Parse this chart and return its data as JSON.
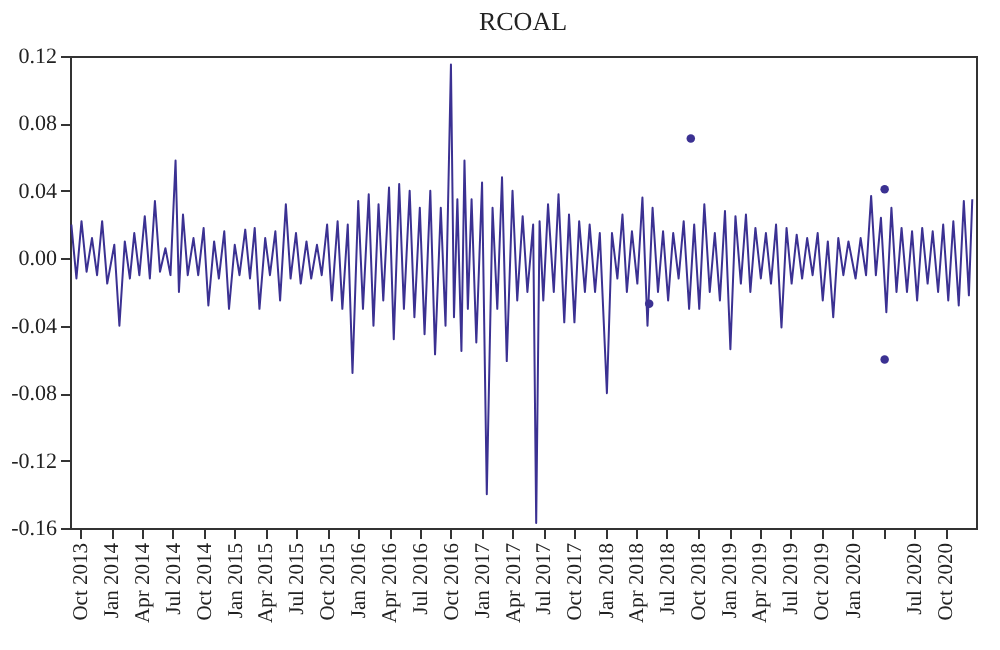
{
  "chart_data": {
    "type": "line",
    "title": "RCOAL",
    "grid": false,
    "line_style": "solid",
    "xlim": [
      "2013-09-01",
      "2020-12-31"
    ],
    "xticks": [
      {
        "value": "2013-10-01",
        "label": "Oct 2013"
      },
      {
        "value": "2014-01-01",
        "label": "Jan 2014"
      },
      {
        "value": "2014-04-01",
        "label": "Apr 2014"
      },
      {
        "value": "2014-07-01",
        "label": "Jul 2014"
      },
      {
        "value": "2014-10-01",
        "label": "Oct 2014"
      },
      {
        "value": "2015-01-01",
        "label": "Jan 2015"
      },
      {
        "value": "2015-04-01",
        "label": "Apr 2015"
      },
      {
        "value": "2015-07-01",
        "label": "Jul 2015"
      },
      {
        "value": "2015-10-01",
        "label": "Oct 2015"
      },
      {
        "value": "2016-01-01",
        "label": "Jan 2016"
      },
      {
        "value": "2016-04-01",
        "label": "Apr 2016"
      },
      {
        "value": "2016-07-01",
        "label": "Jul 2016"
      },
      {
        "value": "2016-10-01",
        "label": "Oct 2016"
      },
      {
        "value": "2017-01-01",
        "label": "Jan 2017"
      },
      {
        "value": "2017-04-01",
        "label": "Apr 2017"
      },
      {
        "value": "2017-07-01",
        "label": "Jul 2017"
      },
      {
        "value": "2017-10-01",
        "label": "Oct 2017"
      },
      {
        "value": "2018-01-01",
        "label": "Jan 2018"
      },
      {
        "value": "2018-04-01",
        "label": "Apr 2018"
      },
      {
        "value": "2018-07-01",
        "label": "Jul 2018"
      },
      {
        "value": "2018-10-01",
        "label": "Oct 2018"
      },
      {
        "value": "2019-01-01",
        "label": "Jan 2019"
      },
      {
        "value": "2019-04-01",
        "label": "Apr 2019"
      },
      {
        "value": "2019-07-01",
        "label": "Jul 2019"
      },
      {
        "value": "2019-10-01",
        "label": "Oct 2019"
      },
      {
        "value": "2020-01-01",
        "label": "Jan 2020"
      },
      {
        "value": "2020-04-01",
        "label": null
      },
      {
        "value": "2020-07-01",
        "label": "Jul 2020"
      },
      {
        "value": "2020-10-01",
        "label": "Oct 2020"
      }
    ],
    "ylim": [
      -0.16,
      0.12
    ],
    "yticks": [
      {
        "value": -0.16,
        "label": "-0.16"
      },
      {
        "value": -0.12,
        "label": "-0.12"
      },
      {
        "value": -0.08,
        "label": "-0.08"
      },
      {
        "value": -0.04,
        "label": "-0.04"
      },
      {
        "value": 0,
        "label": "0.00"
      },
      {
        "value": 0.04,
        "label": "0.04"
      },
      {
        "value": 0.08,
        "label": "0.08"
      },
      {
        "value": 0.12,
        "label": "0.12"
      }
    ],
    "series": [
      {
        "color": "#3b3192",
        "marker": "none",
        "x": [
          "2013-09-05",
          "2013-09-20",
          "2013-10-05",
          "2013-10-20",
          "2013-11-05",
          "2013-11-20",
          "2013-12-05",
          "2013-12-20",
          "2014-01-10",
          "2014-01-25",
          "2014-02-10",
          "2014-02-25",
          "2014-03-10",
          "2014-03-25",
          "2014-04-10",
          "2014-04-25",
          "2014-05-10",
          "2014-05-25",
          "2014-06-10",
          "2014-06-25",
          "2014-07-10",
          "2014-07-20",
          "2014-08-01",
          "2014-08-15",
          "2014-09-01",
          "2014-09-15",
          "2014-10-01",
          "2014-10-15",
          "2014-11-01",
          "2014-11-15",
          "2014-12-01",
          "2014-12-15",
          "2015-01-01",
          "2015-01-15",
          "2015-02-01",
          "2015-02-15",
          "2015-03-01",
          "2015-03-15",
          "2015-04-01",
          "2015-04-15",
          "2015-05-01",
          "2015-05-15",
          "2015-06-01",
          "2015-06-15",
          "2015-07-01",
          "2015-07-15",
          "2015-08-01",
          "2015-08-15",
          "2015-09-01",
          "2015-09-15",
          "2015-10-01",
          "2015-10-15",
          "2015-11-01",
          "2015-11-15",
          "2015-12-01",
          "2015-12-15",
          "2016-01-01",
          "2016-01-15",
          "2016-02-01",
          "2016-02-15",
          "2016-03-01",
          "2016-03-15",
          "2016-04-01",
          "2016-04-15",
          "2016-05-01",
          "2016-05-15",
          "2016-06-01",
          "2016-06-15",
          "2016-07-01",
          "2016-07-15",
          "2016-08-01",
          "2016-08-15",
          "2016-09-01",
          "2016-09-15",
          "2016-10-01",
          "2016-10-10",
          "2016-10-20",
          "2016-11-01",
          "2016-11-10",
          "2016-11-20",
          "2016-12-01",
          "2016-12-15",
          "2017-01-01",
          "2017-01-15",
          "2017-02-01",
          "2017-02-15",
          "2017-03-01",
          "2017-03-15",
          "2017-04-01",
          "2017-04-15",
          "2017-05-01",
          "2017-05-15",
          "2017-06-01",
          "2017-06-10",
          "2017-06-20",
          "2017-07-01",
          "2017-07-15",
          "2017-08-01",
          "2017-08-15",
          "2017-09-01",
          "2017-09-15",
          "2017-10-01",
          "2017-10-15",
          "2017-11-01",
          "2017-11-15",
          "2017-12-01",
          "2017-12-15",
          "2018-01-05",
          "2018-01-20",
          "2018-02-05",
          "2018-02-20",
          "2018-03-05",
          "2018-03-20",
          "2018-04-05",
          "2018-04-20",
          "2018-05-05",
          "2018-05-20",
          "2018-06-05",
          "2018-06-20",
          "2018-07-05",
          "2018-07-20",
          "2018-08-05",
          "2018-08-20",
          "2018-09-05",
          "2018-09-20",
          "2018-10-05",
          "2018-10-20",
          "2018-11-05",
          "2018-11-20",
          "2018-12-05",
          "2018-12-20",
          "2019-01-05",
          "2019-01-20",
          "2019-02-05",
          "2019-02-20",
          "2019-03-05",
          "2019-03-20",
          "2019-04-05",
          "2019-04-20",
          "2019-05-05",
          "2019-05-20",
          "2019-06-05",
          "2019-06-20",
          "2019-07-05",
          "2019-07-20",
          "2019-08-05",
          "2019-08-20",
          "2019-09-05",
          "2019-09-20",
          "2019-10-05",
          "2019-10-20",
          "2019-11-05",
          "2019-11-20",
          "2019-12-05",
          "2019-12-20",
          "2020-01-10",
          "2020-01-25",
          "2020-02-10",
          "2020-02-25",
          "2020-03-10",
          "2020-03-25",
          "2020-04-10",
          "2020-04-25",
          "2020-05-10",
          "2020-05-25",
          "2020-06-10",
          "2020-06-25",
          "2020-07-10",
          "2020-07-25",
          "2020-08-10",
          "2020-08-25",
          "2020-09-10",
          "2020-09-25",
          "2020-10-10",
          "2020-10-25",
          "2020-11-10",
          "2020-11-25",
          "2020-12-10",
          "2020-12-20"
        ],
        "values": [
          0.02,
          -0.012,
          0.022,
          -0.008,
          0.012,
          -0.01,
          0.022,
          -0.015,
          0.008,
          -0.04,
          0.01,
          -0.012,
          0.015,
          -0.01,
          0.025,
          -0.012,
          0.034,
          -0.008,
          0.006,
          -0.01,
          0.058,
          -0.02,
          0.026,
          -0.01,
          0.012,
          -0.01,
          0.018,
          -0.028,
          0.01,
          -0.012,
          0.016,
          -0.03,
          0.008,
          -0.01,
          0.017,
          -0.012,
          0.018,
          -0.03,
          0.012,
          -0.01,
          0.016,
          -0.025,
          0.032,
          -0.012,
          0.015,
          -0.015,
          0.01,
          -0.012,
          0.008,
          -0.01,
          0.02,
          -0.025,
          0.022,
          -0.03,
          0.02,
          -0.068,
          0.034,
          -0.03,
          0.038,
          -0.04,
          0.032,
          -0.025,
          0.042,
          -0.048,
          0.044,
          -0.03,
          0.04,
          -0.035,
          0.03,
          -0.045,
          0.04,
          -0.057,
          0.03,
          -0.04,
          0.115,
          -0.035,
          0.035,
          -0.055,
          0.058,
          -0.03,
          0.035,
          -0.05,
          0.045,
          -0.14,
          0.03,
          -0.03,
          0.048,
          -0.061,
          0.04,
          -0.025,
          0.025,
          -0.02,
          0.02,
          -0.157,
          0.022,
          -0.025,
          0.032,
          -0.02,
          0.038,
          -0.038,
          0.026,
          -0.038,
          0.022,
          -0.02,
          0.02,
          -0.02,
          0.015,
          -0.08,
          0.015,
          -0.012,
          0.026,
          -0.02,
          0.016,
          -0.015,
          0.036,
          -0.04,
          0.03,
          -0.02,
          0.016,
          -0.025,
          0.015,
          -0.012,
          0.022,
          -0.03,
          0.02,
          -0.03,
          0.032,
          -0.02,
          0.015,
          -0.025,
          0.028,
          -0.054,
          0.025,
          -0.015,
          0.026,
          -0.02,
          0.018,
          -0.012,
          0.015,
          -0.015,
          0.02,
          -0.041,
          0.018,
          -0.015,
          0.014,
          -0.012,
          0.012,
          -0.01,
          0.015,
          -0.025,
          0.01,
          -0.035,
          0.012,
          -0.01,
          0.01,
          -0.012,
          0.012,
          -0.01,
          0.037,
          -0.01,
          0.024,
          -0.032,
          0.03,
          -0.02,
          0.018,
          -0.02,
          0.016,
          -0.025,
          0.018,
          -0.015,
          0.016,
          -0.02,
          0.02,
          -0.025,
          0.022,
          -0.028,
          0.034,
          -0.022,
          0.035
        ]
      },
      {
        "type": "scatter",
        "color": "#3b3192",
        "marker": "circle",
        "x": [
          "2018-05-10",
          "2018-09-10",
          "2020-04-05",
          "2020-04-05"
        ],
        "values": [
          -0.027,
          0.071,
          0.041,
          -0.06
        ]
      }
    ]
  }
}
